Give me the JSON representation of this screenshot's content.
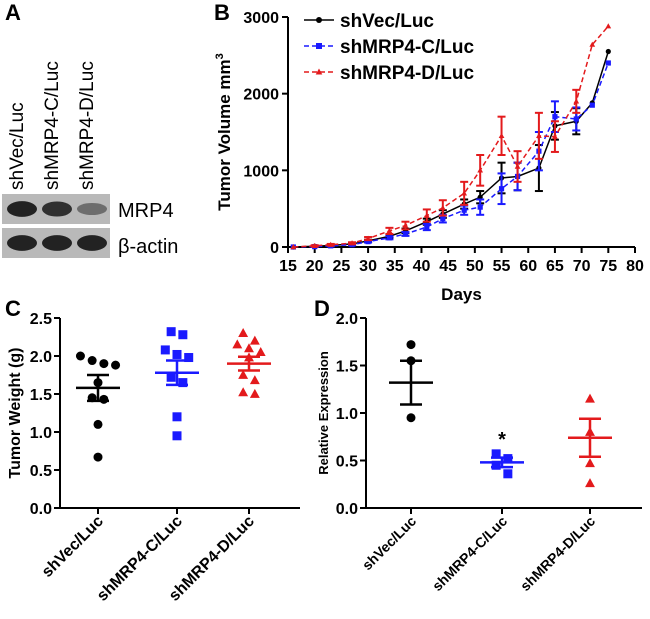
{
  "colors": {
    "shVec": "#000000",
    "shMRP4C": "#1a1aff",
    "shMRP4D": "#e31a1c",
    "blot_bg": "#b9b9b9",
    "band": "#1c1c1c"
  },
  "panel_a": {
    "letter": "A",
    "lanes": [
      "shVec/Luc",
      "shMRP4-C/Luc",
      "shMRP4-D/Luc"
    ],
    "blot_rows": [
      {
        "label": "MRP4",
        "band_intensity": [
          0.95,
          0.85,
          0.35
        ]
      },
      {
        "label": "β-actin",
        "band_intensity": [
          0.95,
          0.95,
          0.95
        ]
      }
    ]
  },
  "panel_letters": {
    "b": "B",
    "c": "C",
    "d": "D"
  },
  "chart_data": [
    {
      "panel": "B",
      "type": "line",
      "title": "",
      "xlabel": "Days",
      "ylabel": "Tumor Volume mm",
      "ylabel_superscript": "3",
      "xlim": [
        15,
        80
      ],
      "ylim": [
        0,
        3000
      ],
      "xticks": [
        15,
        20,
        25,
        30,
        35,
        40,
        45,
        50,
        55,
        60,
        65,
        70,
        75,
        80
      ],
      "yticks": [
        0,
        1000,
        2000,
        3000
      ],
      "legend_position": "top-left",
      "series": [
        {
          "name": "shVec/Luc",
          "color": "#000000",
          "marker": "circle",
          "dash": "solid",
          "x": [
            16,
            20,
            23,
            27,
            30,
            34,
            37,
            41,
            44,
            48,
            51,
            55,
            58,
            62,
            65,
            69,
            72,
            75
          ],
          "y": [
            0,
            10,
            20,
            40,
            80,
            140,
            210,
            330,
            430,
            560,
            650,
            900,
            920,
            1030,
            1580,
            1640,
            1880,
            2550
          ],
          "err": [
            0,
            5,
            8,
            10,
            15,
            20,
            30,
            40,
            50,
            60,
            80,
            200,
            180,
            300,
            180,
            170,
            0,
            0
          ]
        },
        {
          "name": "shMRP4-C/Luc",
          "color": "#1a1aff",
          "marker": "square",
          "dash": "dashed",
          "x": [
            16,
            20,
            23,
            27,
            30,
            34,
            37,
            41,
            44,
            48,
            51,
            55,
            58,
            62,
            65,
            69,
            72,
            75
          ],
          "y": [
            0,
            5,
            15,
            30,
            70,
            120,
            170,
            260,
            370,
            480,
            520,
            760,
            920,
            1250,
            1700,
            1670,
            1850,
            2400
          ],
          "err": [
            0,
            5,
            8,
            10,
            12,
            20,
            25,
            40,
            50,
            60,
            100,
            200,
            180,
            250,
            200,
            150,
            0,
            0
          ]
        },
        {
          "name": "shMRP4-D/Luc",
          "color": "#e31a1c",
          "marker": "triangle",
          "dash": "dashed",
          "x": [
            16,
            20,
            23,
            27,
            30,
            34,
            37,
            41,
            44,
            48,
            51,
            55,
            58,
            62,
            65,
            69,
            72,
            75
          ],
          "y": [
            0,
            15,
            30,
            50,
            110,
            210,
            280,
            410,
            510,
            700,
            1000,
            1450,
            1050,
            1450,
            1440,
            1900,
            2640,
            2880
          ],
          "err": [
            0,
            8,
            10,
            12,
            20,
            40,
            50,
            80,
            100,
            150,
            200,
            250,
            200,
            300,
            200,
            150,
            0,
            0
          ]
        }
      ]
    },
    {
      "panel": "C",
      "type": "scatter",
      "title": "",
      "xlabel": "",
      "ylabel": "Tumor Weight (g)",
      "ylim": [
        0,
        2.5
      ],
      "yticks": [
        0.0,
        0.5,
        1.0,
        1.5,
        2.0,
        2.5
      ],
      "yticklabels": [
        "0.0",
        "0.5",
        "1.0",
        "1.5",
        "2.0",
        "2.5"
      ],
      "categories": [
        "shVec/Luc",
        "shMRP4-C/Luc",
        "shMRP4-D/Luc"
      ],
      "series": [
        {
          "name": "shVec/Luc",
          "color": "#000000",
          "marker": "circle",
          "mean": 1.58,
          "sem": 0.17,
          "points": [
            2.0,
            1.94,
            1.9,
            1.88,
            1.65,
            1.45,
            1.43,
            1.1,
            0.67
          ]
        },
        {
          "name": "shMRP4-C/Luc",
          "color": "#1a1aff",
          "marker": "square",
          "mean": 1.78,
          "sem": 0.16,
          "points": [
            2.32,
            2.28,
            2.08,
            2.02,
            1.98,
            1.72,
            1.65,
            1.2,
            0.95
          ]
        },
        {
          "name": "shMRP4-D/Luc",
          "color": "#e31a1c",
          "marker": "triangle",
          "mean": 1.9,
          "sem": 0.09,
          "points": [
            2.3,
            2.2,
            2.15,
            2.1,
            2.05,
            1.98,
            1.75,
            1.68,
            1.52,
            1.5
          ]
        }
      ]
    },
    {
      "panel": "D",
      "type": "scatter",
      "title": "",
      "xlabel": "",
      "ylabel": "Relative Expression",
      "ylim": [
        0,
        2.0
      ],
      "yticks": [
        0.0,
        0.5,
        1.0,
        1.5,
        2.0
      ],
      "yticklabels": [
        "0.0",
        "0.5",
        "1.0",
        "1.5",
        "2.0"
      ],
      "categories": [
        "shVec/Luc",
        "shMRP4-C/Luc",
        "shMRP4-D/Luc"
      ],
      "annotations": [
        {
          "category": "shMRP4-C/Luc",
          "text": "*"
        }
      ],
      "series": [
        {
          "name": "shVec/Luc",
          "color": "#000000",
          "marker": "circle",
          "mean": 1.32,
          "sem": 0.23,
          "points": [
            1.72,
            1.55,
            0.95
          ]
        },
        {
          "name": "shMRP4-C/Luc",
          "color": "#1a1aff",
          "marker": "square",
          "mean": 0.48,
          "sem": 0.05,
          "points": [
            0.57,
            0.52,
            0.45,
            0.36
          ]
        },
        {
          "name": "shMRP4-D/Luc",
          "color": "#e31a1c",
          "marker": "triangle",
          "mean": 0.74,
          "sem": 0.2,
          "points": [
            1.15,
            0.8,
            0.47,
            0.26
          ]
        }
      ]
    }
  ]
}
